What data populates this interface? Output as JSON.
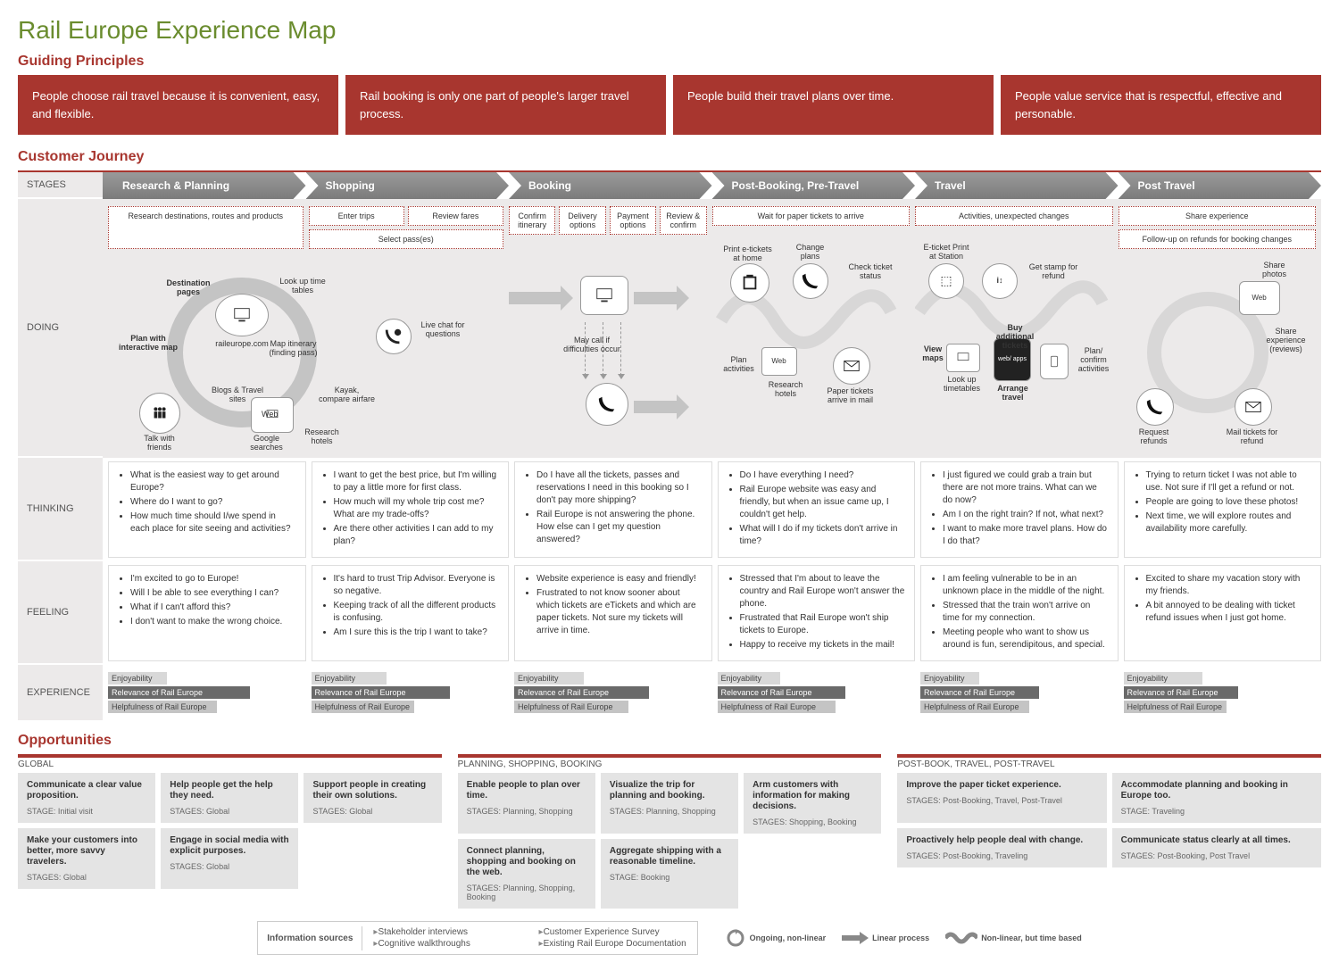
{
  "title": "Rail Europe Experience Map",
  "colors": {
    "accent": "#a8362f",
    "green": "#6a8c2e",
    "grey": "#eceaea",
    "bar_dark": "#6a6a6a"
  },
  "principles_heading": "Guiding Principles",
  "principles": [
    "People choose rail travel because it is convenient, easy, and flexible.",
    "Rail booking is only one part of people's larger travel process.",
    "People build their travel plans over time.",
    "People value service that is respectful, effective and personable."
  ],
  "journey_heading": "Customer Journey",
  "row_labels": {
    "stages": "STAGES",
    "doing": "DOING",
    "thinking": "THINKING",
    "feeling": "FEELING",
    "experience": "EXPERIENCE"
  },
  "stages": [
    "Research & Planning",
    "Shopping",
    "Booking",
    "Post-Booking, Pre-Travel",
    "Travel",
    "Post Travel"
  ],
  "doing": {
    "activities": [
      [
        "Research destinations, routes and products"
      ],
      [
        "Enter trips",
        "Review fares",
        "Select pass(es)"
      ],
      [
        "Confirm itinerary",
        "Delivery options",
        "Payment options",
        "Review & confirm"
      ],
      [
        "Wait for paper tickets to arrive"
      ],
      [
        "Activities, unexpected changes"
      ],
      [
        "Share experience",
        "Follow-up on refunds for booking changes"
      ]
    ],
    "nodes": {
      "research": {
        "center": "raileurope.com",
        "dest_pages": "Destination pages",
        "timetables": "Look up time tables",
        "interactive_map": "Plan with interactive map",
        "map_itin": "Map itinerary (finding pass)",
        "talk_friends": "Talk with friends",
        "blogs": "Blogs & Travel sites",
        "google": "Google searches",
        "research_hotels": "Research hotels",
        "kayak": "Kayak, compare airfare",
        "livechat": "Live chat for questions",
        "web": "Web"
      },
      "booking": {
        "may_call": "May call if difficulties occur"
      },
      "postbook": {
        "print": "Print e-tickets at home",
        "change": "Change plans",
        "check": "Check ticket status",
        "plan_act": "Plan activities",
        "web": "Web",
        "research_hotels": "Research hotels",
        "mail": "Paper tickets arrive in mail"
      },
      "travel": {
        "eticket": "E-ticket Print at Station",
        "stamp": "Get stamp for refund",
        "view_maps": "View maps",
        "lookup": "Look up timetables",
        "arrange": "Arrange travel",
        "webapps": "web/ apps",
        "buy": "Buy additional tickets",
        "plan": "Plan/ confirm activities"
      },
      "post": {
        "share_photos": "Share photos",
        "web": "Web",
        "share_exp": "Share experience (reviews)",
        "request": "Request refunds",
        "mail": "Mail tickets for refund"
      }
    }
  },
  "thinking": [
    [
      "What is the easiest way to get around Europe?",
      "Where do I want to go?",
      "How much time should I/we spend in each place for site seeing and activities?"
    ],
    [
      "I want to get the best price, but I'm willing to pay a little more for first class.",
      "How much will my whole trip cost me? What are my trade-offs?",
      "Are there other activities I can add to my plan?"
    ],
    [
      "Do I have all the tickets, passes and reservations I need in this booking so I don't pay more shipping?",
      "Rail Europe is not answering the phone. How else can I get my question answered?"
    ],
    [
      "Do I have everything I need?",
      "Rail Europe website was easy and friendly, but when an issue came up, I couldn't get help.",
      "What will I do if my tickets don't arrive in time?"
    ],
    [
      "I just figured we could grab a train but there are not more trains. What can we do now?",
      "Am I on the right train? If not, what next?",
      "I want to make more travel plans. How do I do that?"
    ],
    [
      "Trying to return ticket I was not able to use. Not sure if I'll get a refund or not.",
      "People are going to love these photos!",
      "Next time, we will explore routes and availability more carefully."
    ]
  ],
  "feeling": [
    [
      "I'm excited to go to Europe!",
      "Will I be able to see everything I can?",
      "What if I can't afford this?",
      "I don't want to make the wrong choice."
    ],
    [
      "It's hard to trust Trip Advisor. Everyone is so negative.",
      "Keeping track of all the different products is confusing.",
      "Am I sure this is the trip I want to take?"
    ],
    [
      "Website experience is easy and friendly!",
      "Frustrated to not know sooner about which tickets are eTickets and which are paper tickets. Not sure my tickets will arrive in time."
    ],
    [
      "Stressed that I'm about to leave the country and Rail Europe won't answer the phone.",
      "Frustrated that Rail Europe won't ship tickets to Europe.",
      "Happy to receive my tickets in the mail!"
    ],
    [
      "I am feeling vulnerable to be in an unknown place in the middle of the night.",
      "Stressed that the train won't arrive on time for my connection.",
      "Meeting people who want to show us around is fun, serendipitous, and special."
    ],
    [
      "Excited to share my vacation story with my friends.",
      "A bit annoyed to be dealing with ticket refund issues when I just got home."
    ]
  ],
  "experience": {
    "labels": [
      "Enjoyability",
      "Relevance of Rail Europe",
      "Helpfulness of Rail Europe"
    ],
    "bars": [
      [
        30,
        72,
        55
      ],
      [
        38,
        70,
        52
      ],
      [
        35,
        68,
        58
      ],
      [
        32,
        65,
        60
      ],
      [
        30,
        60,
        55
      ],
      [
        40,
        58,
        52
      ]
    ]
  },
  "opportunities_heading": "Opportunities",
  "opp_section_labels": [
    "GLOBAL",
    "PLANNING, SHOPPING, BOOKING",
    "POST-BOOK, TRAVEL, POST-TRAVEL"
  ],
  "opportunities": {
    "global": [
      {
        "t": "Communicate a clear value proposition.",
        "s": "STAGE: Initial visit"
      },
      {
        "t": "Help people get the help they need.",
        "s": "STAGES: Global"
      },
      {
        "t": "Support people in creating their own solutions.",
        "s": "STAGES: Global"
      },
      {
        "t": "Make your customers into better, more savvy travelers.",
        "s": "STAGES: Global"
      },
      {
        "t": "Engage in social media with explicit purposes.",
        "s": "STAGES: Global"
      }
    ],
    "psb": [
      {
        "t": "Enable people to plan over time.",
        "s": "STAGES: Planning, Shopping"
      },
      {
        "t": "Visualize the trip for planning and booking.",
        "s": "STAGES: Planning, Shopping"
      },
      {
        "t": "Arm customers with information for making decisions.",
        "s": "STAGES: Shopping, Booking"
      },
      {
        "t": "Connect planning, shopping and booking on the web.",
        "s": "STAGES: Planning, Shopping, Booking"
      },
      {
        "t": "Aggregate shipping with a reasonable timeline.",
        "s": "STAGE: Booking"
      }
    ],
    "post": [
      {
        "t": "Improve the paper ticket experience.",
        "s": "STAGES: Post-Booking, Travel, Post-Travel"
      },
      {
        "t": "Accommodate planning and booking in Europe too.",
        "s": "STAGE: Traveling"
      },
      {
        "t": "Proactively help people deal with change.",
        "s": "STAGES: Post-Booking, Traveling"
      },
      {
        "t": "Communicate status clearly at all times.",
        "s": "STAGES: Post-Booking, Post Travel"
      }
    ]
  },
  "info_sources": {
    "h": "Information sources",
    "items": [
      "Stakeholder interviews",
      "Customer Experience Survey",
      "Cognitive walkthroughs",
      "Existing Rail Europe Documentation"
    ]
  },
  "legend": [
    "Ongoing, non-linear",
    "Linear process",
    "Non-linear, but time based"
  ]
}
